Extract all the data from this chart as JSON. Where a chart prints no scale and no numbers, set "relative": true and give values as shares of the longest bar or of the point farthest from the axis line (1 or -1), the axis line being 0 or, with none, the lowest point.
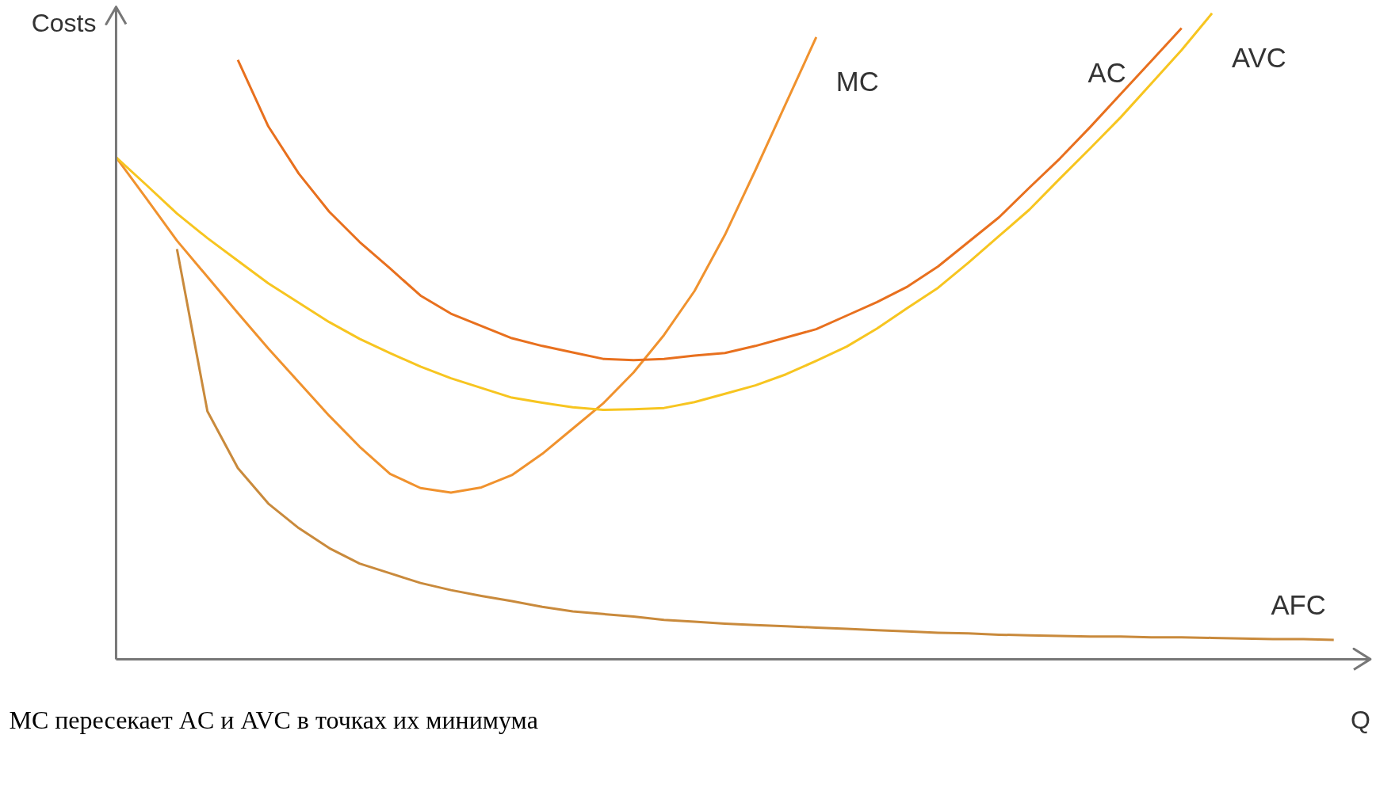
{
  "chart_data": {
    "type": "line",
    "relative": true,
    "ylabel": "Costs",
    "xlabel": "Q",
    "annotations": [
      "MC пересекает AC и AVC в точках их минимума"
    ],
    "grid": false,
    "legend": false,
    "marker": "none",
    "line_style": "solid",
    "categories": [
      null,
      null,
      null,
      null,
      null,
      null,
      null,
      null,
      null,
      null,
      null,
      null,
      null,
      null,
      null,
      null,
      null,
      null,
      null,
      null,
      null,
      null,
      null,
      null,
      null,
      null,
      null,
      null,
      null,
      null,
      null,
      null,
      null,
      null,
      null,
      null,
      null,
      null,
      null,
      null,
      null
    ],
    "series": [
      {
        "name": "MC",
        "color": "#f0922e",
        "values": [
          0.777,
          0.713,
          0.648,
          0.592,
          0.536,
          0.481,
          0.429,
          0.377,
          0.329,
          0.287,
          0.265,
          0.258,
          0.266,
          0.285,
          0.318,
          0.357,
          0.396,
          0.444,
          0.502,
          0.57,
          0.657,
          0.757,
          0.86,
          0.963,
          null,
          null,
          null,
          null,
          null,
          null,
          null,
          null,
          null,
          null,
          null,
          null,
          null,
          null,
          null,
          null,
          null
        ]
      },
      {
        "name": "AC",
        "color": "#e8701e",
        "values": [
          null,
          null,
          null,
          null,
          0.928,
          0.825,
          0.752,
          0.693,
          0.646,
          0.605,
          0.563,
          0.535,
          0.516,
          0.497,
          0.485,
          0.475,
          0.465,
          0.463,
          0.465,
          0.47,
          0.474,
          0.485,
          0.498,
          0.511,
          0.532,
          0.553,
          0.577,
          0.608,
          0.646,
          0.684,
          0.73,
          0.775,
          0.824,
          0.875,
          0.926,
          0.977,
          null,
          null,
          null,
          null,
          null
        ]
      },
      {
        "name": "AVC",
        "color": "#f7c520",
        "values": [
          0.777,
          0.734,
          0.69,
          0.652,
          0.617,
          0.582,
          0.552,
          0.522,
          0.496,
          0.474,
          0.453,
          0.435,
          0.42,
          0.405,
          0.397,
          0.39,
          0.386,
          0.387,
          0.389,
          0.398,
          0.411,
          0.424,
          0.441,
          0.462,
          0.484,
          0.512,
          0.544,
          0.575,
          0.614,
          0.655,
          0.696,
          0.744,
          0.791,
          0.839,
          0.891,
          0.943,
          1,
          null,
          null,
          null,
          null
        ]
      },
      {
        "name": "AFC",
        "color": "#c98a3c",
        "values": [
          null,
          null,
          0.635,
          0.384,
          0.296,
          0.241,
          0.203,
          0.172,
          0.148,
          0.133,
          0.118,
          0.107,
          0.098,
          0.09,
          0.081,
          0.074,
          0.07,
          0.066,
          0.061,
          0.058,
          0.055,
          0.053,
          0.051,
          0.049,
          0.047,
          0.045,
          0.043,
          0.041,
          0.04,
          0.038,
          0.037,
          0.036,
          0.035,
          0.035,
          0.034,
          0.034,
          0.033,
          0.032,
          0.031,
          0.031,
          0.03
        ]
      }
    ]
  }
}
